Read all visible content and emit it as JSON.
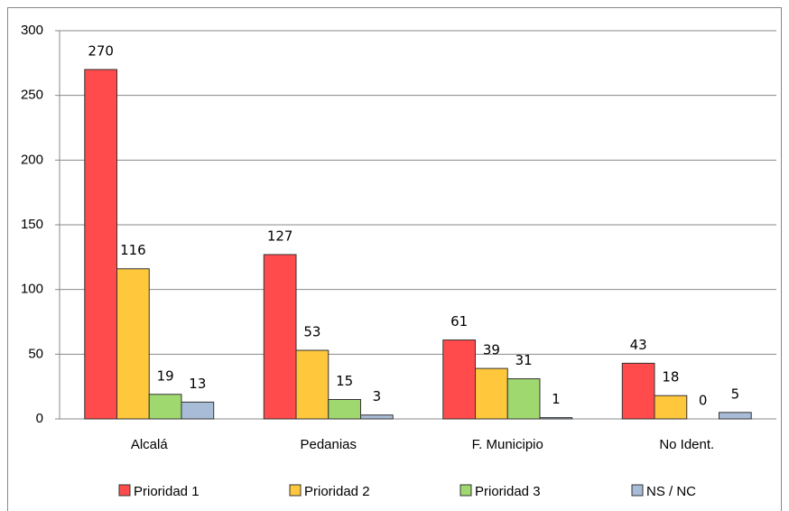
{
  "chart_data": {
    "type": "bar",
    "categories": [
      "Alcalá",
      "Pedanias",
      "F. Municipio",
      "No Ident."
    ],
    "series": [
      {
        "name": "Prioridad 1",
        "color": "#ff4b4b",
        "values": [
          270,
          127,
          61,
          43
        ]
      },
      {
        "name": "Prioridad 2",
        "color": "#ffc83c",
        "values": [
          116,
          53,
          39,
          18
        ]
      },
      {
        "name": "Prioridad 3",
        "color": "#a0d870",
        "values": [
          19,
          15,
          31,
          0
        ]
      },
      {
        "name": "NS / NC",
        "color": "#a8bcd8",
        "values": [
          13,
          3,
          1,
          5
        ]
      }
    ],
    "ylim": [
      0,
      300
    ],
    "yticks": [
      0,
      50,
      100,
      150,
      200,
      250,
      300
    ],
    "grid": true,
    "legend": "bottom"
  }
}
